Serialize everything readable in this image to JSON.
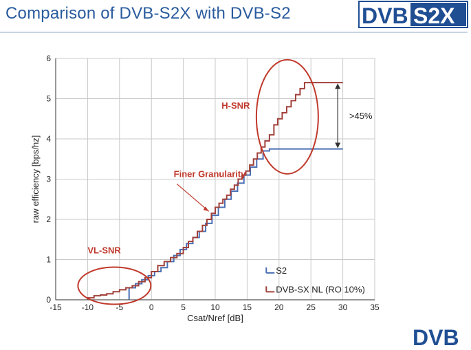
{
  "slide": {
    "title": "Comparison of DVB-S2X with DVB-S2",
    "logo_top": {
      "left": "DVB",
      "right": "S2X"
    },
    "logo_bottom": "DVB"
  },
  "colors": {
    "title": "#2a5b9e",
    "s2": "#4a6fb5",
    "s2x": "#a0403a",
    "annotation": "#c0392b",
    "grid": "#c8c8c8",
    "logo_blue": "#1f4e93"
  },
  "chart_data": {
    "type": "line",
    "step": true,
    "xlabel": "Csat/Nref [dB]",
    "ylabel": "raw efficiency [bps/hz]",
    "xlim": [
      -15,
      35
    ],
    "ylim": [
      0,
      6
    ],
    "xticks": [
      "-15",
      "-10",
      "-5",
      "0",
      "5",
      "10",
      "15",
      "20",
      "25",
      "30",
      "35"
    ],
    "yticks": [
      "0",
      "1",
      "2",
      "3",
      "4",
      "5",
      "6"
    ],
    "grid": true,
    "legend": {
      "placement": "bottom-right",
      "entries": [
        "S2",
        "DVB-SX NL (RO 10%)"
      ]
    },
    "series": [
      {
        "name": "S2",
        "color": "#4a6fb5",
        "x": [
          -3.5,
          -2.5,
          -1.5,
          -0.5,
          0.5,
          1.5,
          2.5,
          3.5,
          4.5,
          5.5,
          6.5,
          7.5,
          8.5,
          9.5,
          10.5,
          11.5,
          12.5,
          13.5,
          14.5,
          15.5,
          16.5,
          17.5,
          18.5,
          30
        ],
        "y": [
          0.3,
          0.4,
          0.5,
          0.6,
          0.7,
          0.8,
          0.95,
          1.1,
          1.25,
          1.4,
          1.55,
          1.7,
          1.9,
          2.1,
          2.3,
          2.5,
          2.7,
          2.9,
          3.1,
          3.3,
          3.5,
          3.7,
          3.75,
          3.75
        ]
      },
      {
        "name": "DVB-SX NL (RO 10%)",
        "color": "#a0403a",
        "x": [
          -10,
          -9,
          -8,
          -7,
          -6,
          -5,
          -4,
          -3,
          -2,
          -1,
          0,
          1,
          2,
          3,
          4,
          5,
          5.8,
          6.5,
          7.2,
          8,
          8.7,
          9.4,
          10,
          10.6,
          11.2,
          11.8,
          12.4,
          13,
          13.6,
          14.2,
          14.8,
          15.4,
          16,
          16.6,
          17.2,
          17.8,
          18.5,
          19.2,
          19.8,
          20.5,
          21.2,
          21.9,
          22.6,
          23.3,
          24,
          30
        ],
        "y": [
          0.05,
          0.1,
          0.12,
          0.15,
          0.2,
          0.25,
          0.3,
          0.35,
          0.45,
          0.55,
          0.7,
          0.85,
          0.95,
          1.05,
          1.15,
          1.3,
          1.45,
          1.55,
          1.7,
          1.85,
          2.0,
          2.15,
          2.3,
          2.4,
          2.5,
          2.6,
          2.75,
          2.85,
          3.0,
          3.1,
          3.2,
          3.35,
          3.5,
          3.65,
          3.8,
          3.95,
          4.1,
          4.35,
          4.5,
          4.65,
          4.8,
          4.95,
          5.1,
          5.25,
          5.4,
          5.4
        ]
      }
    ],
    "annotations": [
      {
        "text": "VL-SNR",
        "x": -10,
        "y": 1.15
      },
      {
        "text": "Finer Granularity",
        "x": 3.5,
        "y": 3.05
      },
      {
        "text": "H-SNR",
        "x": 11,
        "y": 4.75
      },
      {
        "text": ">45%",
        "x": 31,
        "y": 4.5
      }
    ]
  }
}
